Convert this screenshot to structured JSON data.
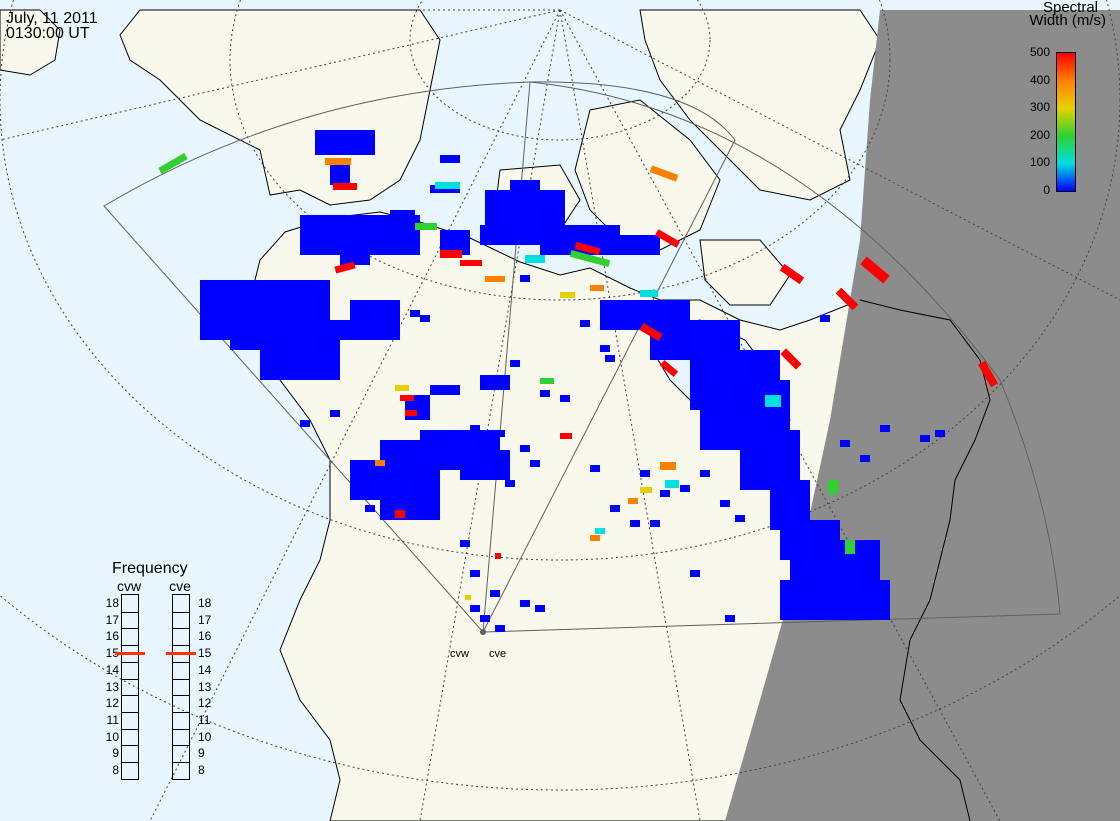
{
  "header": {
    "date": "July, 11 2011",
    "time": "0130:00 UT"
  },
  "colorbar": {
    "title_line1": "Spectral",
    "title_line2": "Width (m/s)",
    "ticks": [
      "500",
      "400",
      "300",
      "200",
      "100",
      "0"
    ],
    "colors": [
      "#ff0000",
      "#ff8000",
      "#e8d000",
      "#30d030",
      "#00e0e0",
      "#0000ff"
    ]
  },
  "frequency": {
    "title": "Frequency",
    "radars": [
      "cvw",
      "cve"
    ],
    "levels": [
      "18",
      "17",
      "16",
      "15",
      "14",
      "13",
      "12",
      "11",
      "10",
      "9",
      "8"
    ],
    "current": [
      15,
      15
    ]
  },
  "sites": [
    {
      "name": "cvw"
    },
    {
      "name": "cve"
    }
  ],
  "colors": {
    "ocean": "#e8f6ff",
    "land": "#f8f8ec",
    "night": "#8c8c8c",
    "coast": "#000000",
    "fov": "#606060",
    "grid": "#404040",
    "freq_marker": "#ff3300"
  }
}
